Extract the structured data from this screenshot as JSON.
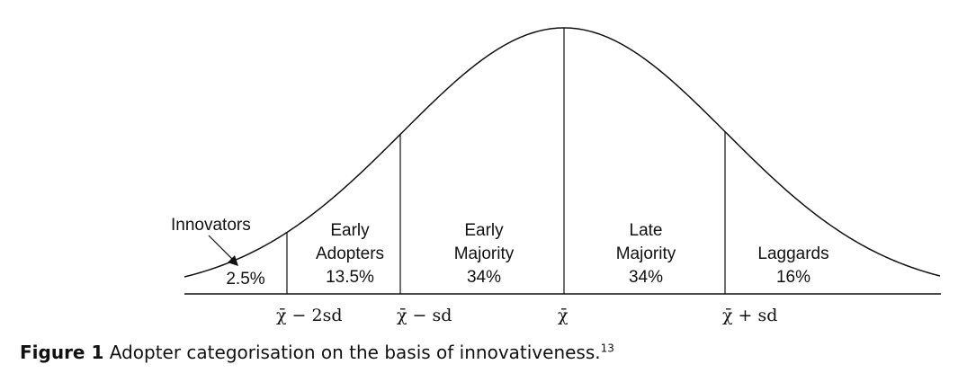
{
  "diagram": {
    "segments": [
      {
        "id": "innovators",
        "name": "Innovators",
        "line1": "",
        "line2": "",
        "percent": "2.5%"
      },
      {
        "id": "early-adopters",
        "line1": "Early",
        "line2": "Adopters",
        "percent": "13.5%"
      },
      {
        "id": "early-majority",
        "line1": "Early",
        "line2": "Majority",
        "percent": "34%"
      },
      {
        "id": "late-majority",
        "line1": "Late",
        "line2": "Majority",
        "percent": "34%"
      },
      {
        "id": "laggards",
        "line1": "",
        "line2": "Laggards",
        "percent": "16%"
      }
    ],
    "axis_labels": {
      "mean_minus_2sd": "χ̄ − 2sd",
      "mean_minus_sd": "χ̄ − sd",
      "mean": "χ̄",
      "mean_plus_sd": "χ̄ + sd"
    }
  },
  "caption": {
    "label": "Figure 1",
    "text": "Adopter categorisation on the basis of innovativeness.",
    "ref": "13"
  },
  "colors": {
    "ink": "#111111",
    "background": "#ffffff"
  }
}
